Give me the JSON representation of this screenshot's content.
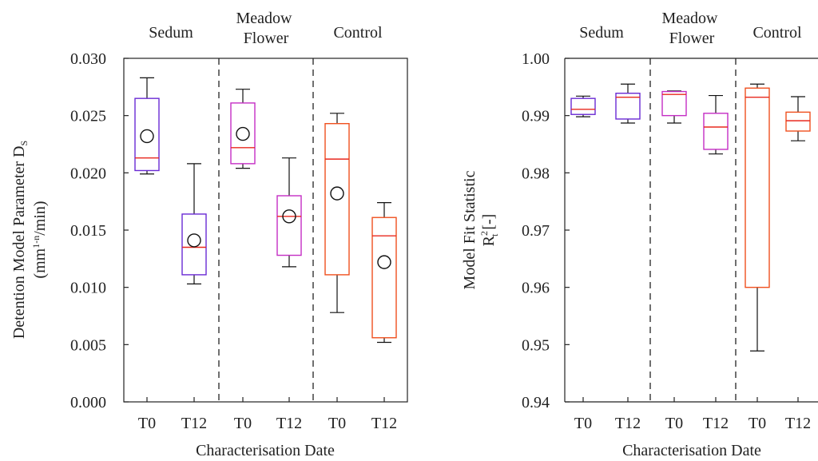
{
  "chart_data": [
    {
      "type": "box",
      "xlabel": "Characterisation Date",
      "ylabel_line1": "Detention Model Parameter D",
      "ylabel_sub": "S",
      "ylabel_line2_pre": "(mm",
      "ylabel_line2_sup": "1-n",
      "ylabel_line2_post": "/min)",
      "ylim": [
        0.0,
        0.03
      ],
      "yticks": [
        "0.000",
        "0.005",
        "0.010",
        "0.015",
        "0.020",
        "0.025",
        "0.030"
      ],
      "groups": [
        {
          "label_lines": [
            "Sedum"
          ]
        },
        {
          "label_lines": [
            "Meadow",
            "Flower"
          ]
        },
        {
          "label_lines": [
            "Control"
          ]
        }
      ],
      "categories": [
        "T0",
        "T12",
        "T0",
        "T12",
        "T0",
        "T12"
      ],
      "boxes": [
        {
          "group": "Sedum",
          "date": "T0",
          "min": 0.0199,
          "q1": 0.0202,
          "median": 0.0213,
          "q3": 0.0265,
          "max": 0.0283,
          "mean": 0.0232,
          "color": "#6a2ad4"
        },
        {
          "group": "Sedum",
          "date": "T12",
          "min": 0.0103,
          "q1": 0.0111,
          "median": 0.0135,
          "q3": 0.0164,
          "max": 0.0208,
          "mean": 0.0141,
          "color": "#6a2ad4"
        },
        {
          "group": "Meadow Flower",
          "date": "T0",
          "min": 0.0204,
          "q1": 0.0208,
          "median": 0.0222,
          "q3": 0.0261,
          "max": 0.0273,
          "mean": 0.0234,
          "color": "#c42ec4"
        },
        {
          "group": "Meadow Flower",
          "date": "T12",
          "min": 0.0118,
          "q1": 0.0128,
          "median": 0.0162,
          "q3": 0.018,
          "max": 0.0213,
          "mean": 0.0162,
          "color": "#c42ec4"
        },
        {
          "group": "Control",
          "date": "T0",
          "min": 0.0078,
          "q1": 0.0111,
          "median": 0.0212,
          "q3": 0.0243,
          "max": 0.0252,
          "mean": 0.0182,
          "color": "#f0501e"
        },
        {
          "group": "Control",
          "date": "T12",
          "min": 0.0052,
          "q1": 0.0056,
          "median": 0.0145,
          "q3": 0.0161,
          "max": 0.0174,
          "mean": 0.0122,
          "color": "#f0501e"
        }
      ],
      "median_color": "#e8281e",
      "grid": false
    },
    {
      "type": "box",
      "xlabel": "Characterisation Date",
      "ylabel_line1": "Model Fit Statistic",
      "ylabel_line2_pre": "R",
      "ylabel_line2_sub": "t",
      "ylabel_line2_sup": "2",
      "ylabel_line2_post": " [-]",
      "ylim": [
        0.94,
        1.0
      ],
      "yticks": [
        "0.94",
        "0.95",
        "0.96",
        "0.97",
        "0.98",
        "0.99",
        "1.00"
      ],
      "groups": [
        {
          "label_lines": [
            "Sedum"
          ]
        },
        {
          "label_lines": [
            "Meadow",
            "Flower"
          ]
        },
        {
          "label_lines": [
            "Control"
          ]
        }
      ],
      "categories": [
        "T0",
        "T12",
        "T0",
        "T12",
        "T0",
        "T12"
      ],
      "boxes": [
        {
          "group": "Sedum",
          "date": "T0",
          "min": 0.9898,
          "q1": 0.9902,
          "median": 0.9911,
          "q3": 0.993,
          "max": 0.9934,
          "color": "#6a2ad4"
        },
        {
          "group": "Sedum",
          "date": "T12",
          "min": 0.9887,
          "q1": 0.9894,
          "median": 0.9932,
          "q3": 0.9939,
          "max": 0.9955,
          "color": "#6a2ad4"
        },
        {
          "group": "Meadow Flower",
          "date": "T0",
          "min": 0.9887,
          "q1": 0.99,
          "median": 0.9937,
          "q3": 0.9942,
          "max": 0.9943,
          "color": "#c42ec4"
        },
        {
          "group": "Meadow Flower",
          "date": "T12",
          "min": 0.9833,
          "q1": 0.9841,
          "median": 0.988,
          "q3": 0.9904,
          "max": 0.9935,
          "color": "#c42ec4"
        },
        {
          "group": "Control",
          "date": "T0",
          "min": 0.9489,
          "q1": 0.96,
          "median": 0.9932,
          "q3": 0.9948,
          "max": 0.9955,
          "color": "#f0501e"
        },
        {
          "group": "Control",
          "date": "T12",
          "min": 0.9856,
          "q1": 0.9873,
          "median": 0.9891,
          "q3": 0.9906,
          "max": 0.9933,
          "color": "#f0501e"
        }
      ],
      "median_color": "#e8281e",
      "grid": false
    }
  ]
}
